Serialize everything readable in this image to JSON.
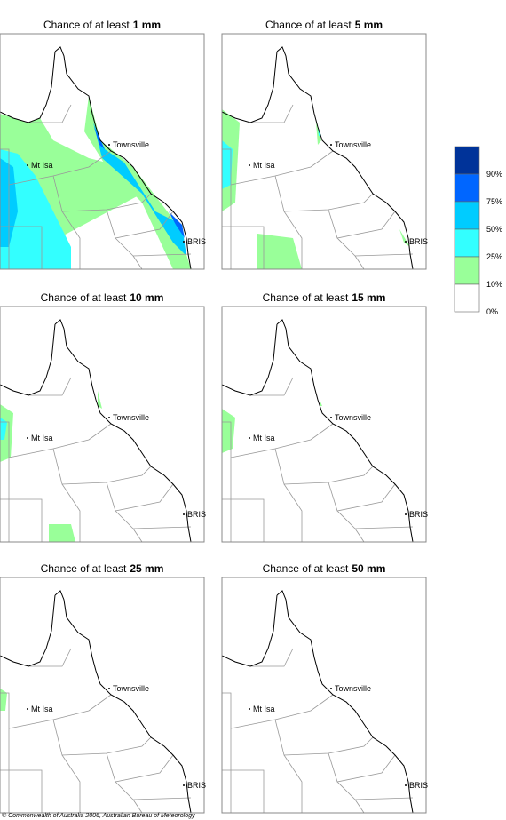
{
  "panels": [
    {
      "prefix": "Chance of at least",
      "amount": "1 mm"
    },
    {
      "prefix": "Chance of at least",
      "amount": "5 mm"
    },
    {
      "prefix": "Chance of at least",
      "amount": "10 mm"
    },
    {
      "prefix": "Chance of at least",
      "amount": "15 mm"
    },
    {
      "prefix": "Chance of at least",
      "amount": "25 mm"
    },
    {
      "prefix": "Chance of at least",
      "amount": "50 mm"
    }
  ],
  "places": [
    "Townsville",
    "Mt Isa",
    "BRIS"
  ],
  "legend": {
    "colors": [
      "#003399",
      "#0066ff",
      "#00ccff",
      "#33ffff",
      "#99ff99",
      "#ffffff"
    ],
    "labels": [
      "90%",
      "75%",
      "50%",
      "25%",
      "10%",
      "0%"
    ]
  },
  "copyright": "© Commonwealth of Australia 2006, Australian Bureau of Meteorology"
}
